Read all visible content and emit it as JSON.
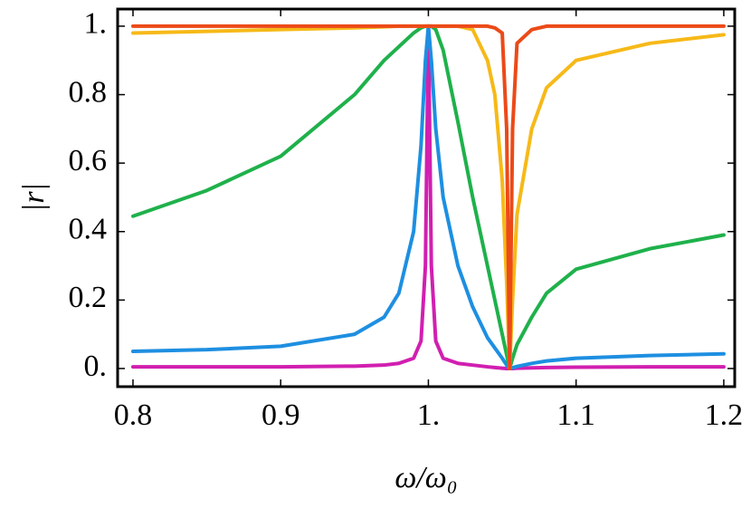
{
  "chart_data": {
    "type": "line",
    "x_label": "ω/ω₀",
    "y_label": "|r|",
    "xlim": [
      0.7896,
      1.2074
    ],
    "ylim": [
      -0.053,
      1.05
    ],
    "xticks": [
      0.8,
      0.9,
      {
        "value": 1,
        "label": "1."
      },
      1.1,
      1.2
    ],
    "yticks": [
      {
        "value": 0,
        "label": "0."
      },
      0.2,
      0.4,
      0.6,
      0.8,
      {
        "value": 1,
        "label": "1."
      }
    ],
    "x": [
      0.8,
      0.85,
      0.9,
      0.95,
      0.97,
      0.98,
      0.99,
      0.995,
      0.998,
      1.0,
      1.002,
      1.005,
      1.01,
      1.02,
      1.03,
      1.04,
      1.045,
      1.05,
      1.053,
      1.055,
      1.057,
      1.06,
      1.07,
      1.08,
      1.1,
      1.15,
      1.2
    ],
    "series": [
      {
        "color": "#d11fb0",
        "values": [
          0.005,
          0.005,
          0.005,
          0.007,
          0.01,
          0.015,
          0.03,
          0.08,
          0.3,
          1,
          0.3,
          0.08,
          0.03,
          0.015,
          0.01,
          0.005,
          0.003,
          0.001,
          0,
          0,
          0,
          0.001,
          0.002,
          0.003,
          0.004,
          0.005,
          0.005
        ]
      },
      {
        "color": "#1e8fe1",
        "values": [
          0.05,
          0.055,
          0.065,
          0.1,
          0.15,
          0.22,
          0.4,
          0.65,
          0.9,
          1,
          0.9,
          0.7,
          0.5,
          0.3,
          0.18,
          0.09,
          0.06,
          0.03,
          0.01,
          0,
          0.002,
          0.006,
          0.015,
          0.022,
          0.03,
          0.038,
          0.043
        ]
      },
      {
        "color": "#1fb14b",
        "values": [
          0.445,
          0.52,
          0.62,
          0.8,
          0.9,
          0.94,
          0.98,
          0.995,
          1,
          1,
          1,
          0.99,
          0.93,
          0.72,
          0.5,
          0.3,
          0.2,
          0.1,
          0.04,
          0,
          0.03,
          0.07,
          0.15,
          0.22,
          0.29,
          0.35,
          0.39
        ]
      },
      {
        "color": "#f6b918",
        "values": [
          0.98,
          0.985,
          0.99,
          0.995,
          0.998,
          1,
          1,
          1,
          1,
          1,
          1,
          1,
          1,
          1,
          0.99,
          0.9,
          0.8,
          0.55,
          0.25,
          0,
          0.2,
          0.45,
          0.7,
          0.82,
          0.9,
          0.95,
          0.975
        ]
      },
      {
        "color": "#ec4a18",
        "values": [
          1,
          1,
          1,
          1,
          1,
          1,
          1,
          1,
          1,
          1,
          1,
          1,
          1,
          1,
          1,
          1,
          0.995,
          0.98,
          0.7,
          0,
          0.7,
          0.95,
          0.99,
          1,
          1,
          1,
          1
        ]
      }
    ]
  }
}
